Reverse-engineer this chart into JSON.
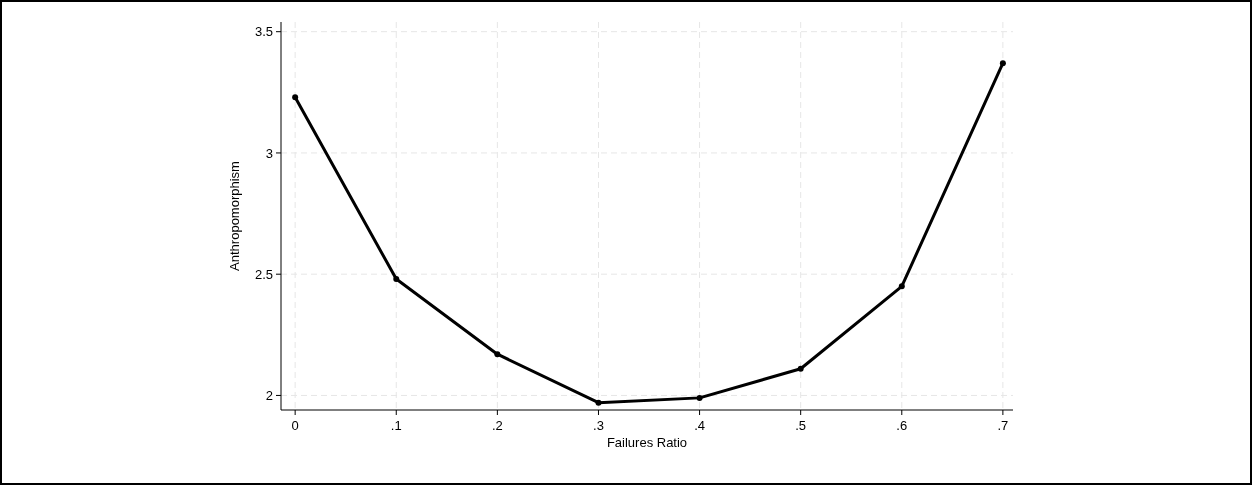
{
  "chart_data": {
    "type": "line",
    "xlabel": "Failures Ratio",
    "ylabel": "Anthropomorphism",
    "x": [
      0,
      0.1,
      0.2,
      0.3,
      0.4,
      0.5,
      0.6,
      0.7
    ],
    "series": [
      {
        "color": "#000000",
        "values": [
          3.23,
          2.48,
          2.17,
          1.97,
          1.99,
          2.11,
          2.45,
          3.37
        ]
      }
    ],
    "xlim": [
      -0.014,
      0.71
    ],
    "xticks": [
      {
        "value": 0,
        "label": "0"
      },
      {
        "value": 0.1,
        "label": ".1"
      },
      {
        "value": 0.2,
        "label": ".2"
      },
      {
        "value": 0.3,
        "label": ".3"
      },
      {
        "value": 0.4,
        "label": ".4"
      },
      {
        "value": 0.5,
        "label": ".5"
      },
      {
        "value": 0.6,
        "label": ".6"
      },
      {
        "value": 0.7,
        "label": ".7"
      }
    ],
    "ylim": [
      1.94,
      3.54
    ],
    "yticks": [
      2,
      2.5,
      3,
      3.5
    ],
    "grid": true,
    "marker": "circle",
    "line_style": "solid"
  }
}
